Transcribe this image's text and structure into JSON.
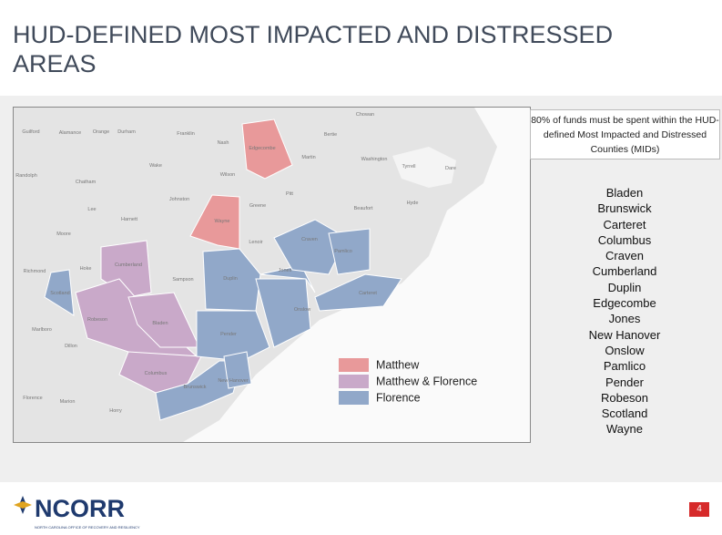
{
  "header": {
    "title": "HUD-DEFINED MOST IMPACTED AND DISTRESSED AREAS"
  },
  "note": "80% of funds must be spent within the HUD-defined Most Impacted and Distressed Counties (MIDs)",
  "counties": [
    "Bladen",
    "Brunswick",
    "Carteret",
    "Columbus",
    "Craven",
    "Cumberland",
    "Duplin",
    "Edgecombe",
    "Jones",
    "New Hanover",
    "Onslow",
    "Pamlico",
    "Pender",
    "Robeson",
    "Scotland",
    "Wayne"
  ],
  "legend": [
    {
      "name": "Matthew",
      "color": "#e8999a"
    },
    {
      "name": "Matthew & Florence",
      "color": "#c9a9c9"
    },
    {
      "name": "Florence",
      "color": "#91a8c9"
    }
  ],
  "map_labels": [
    "Guilford",
    "Alamance",
    "Orange",
    "Durham",
    "Franklin",
    "Nash",
    "Edgecombe",
    "Martin",
    "Bertie",
    "Chowan",
    "Washington",
    "Tyrrell",
    "Dare",
    "Randolph",
    "Chatham",
    "Wake",
    "Wilson",
    "Johnston",
    "Pitt",
    "Beaufort",
    "Hyde",
    "Lee",
    "Harnett",
    "Wayne",
    "Greene",
    "Lenoir",
    "Craven",
    "Pamlico",
    "Moore",
    "Cumberland",
    "Sampson",
    "Duplin",
    "Jones",
    "Onslow",
    "Carteret",
    "Richmond",
    "Hoke",
    "Scotland",
    "Robeson",
    "Bladen",
    "Pender",
    "Marlboro",
    "Dillon",
    "Columbus",
    "Brunswick",
    "New Hanover",
    "Florence",
    "Marion",
    "Horry"
  ],
  "footer": {
    "logo": "NCORR",
    "agency": "NORTH CAROLINA OFFICE OF RECOVERY AND RESILIENCY",
    "page": "4"
  }
}
